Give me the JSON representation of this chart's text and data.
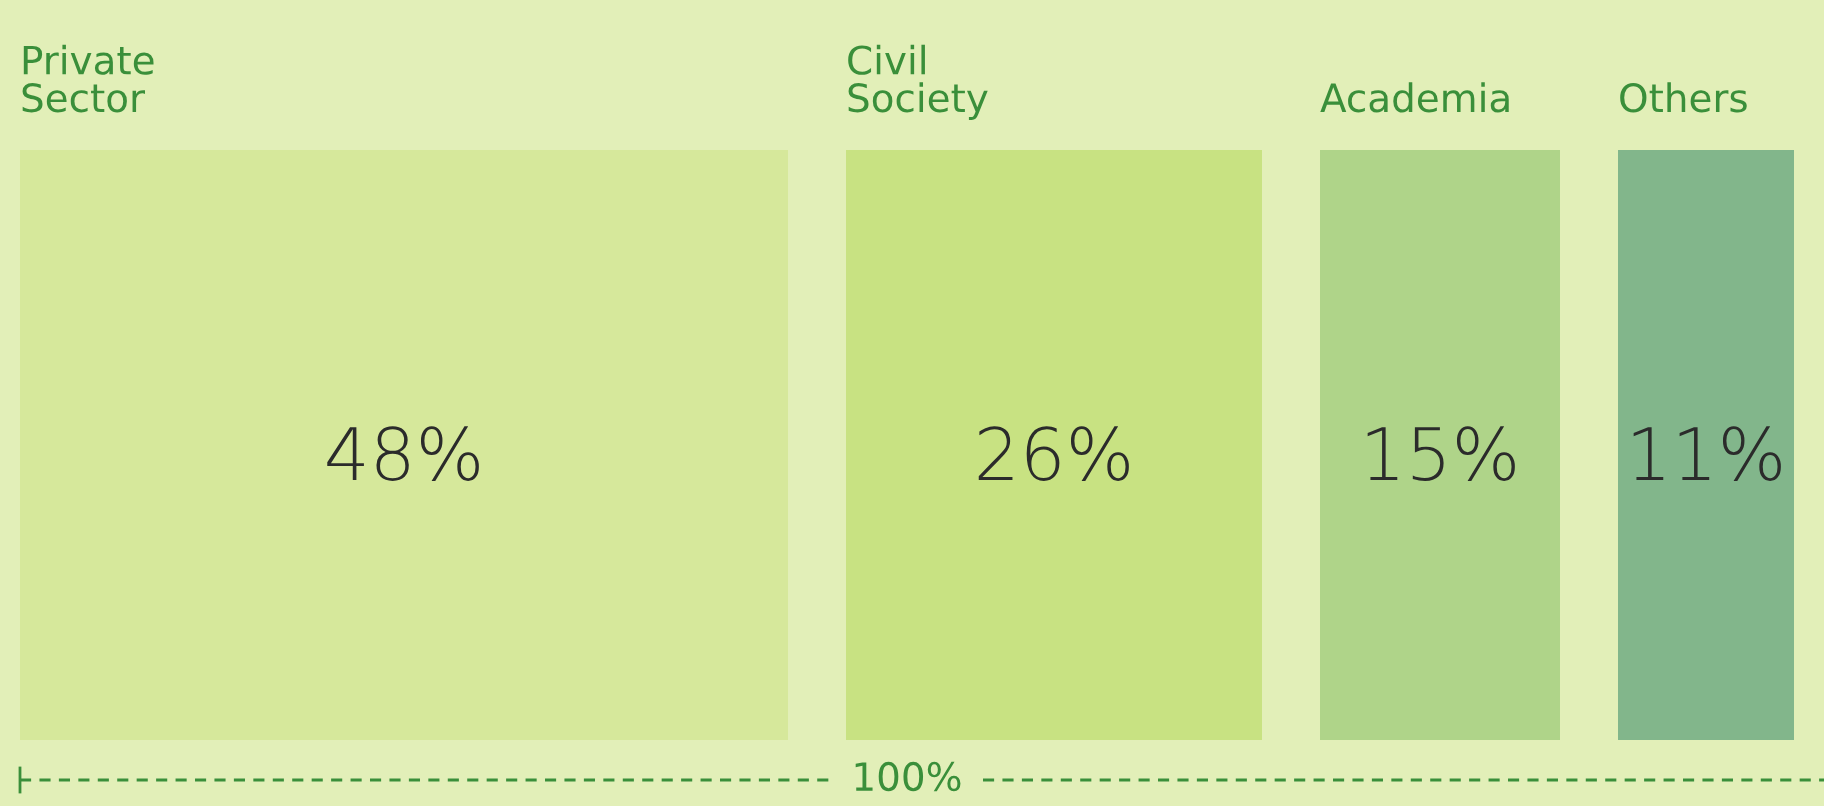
{
  "chart_data": {
    "type": "other",
    "categories": [
      "Private Sector",
      "Civil Society",
      "Academia",
      "Others"
    ],
    "values": [
      48,
      26,
      15,
      11
    ],
    "colors": [
      "#d6e89b",
      "#c8e282",
      "#afd489",
      "#82b68b"
    ],
    "value_labels": [
      "48%",
      "26%",
      "15%",
      "11%"
    ],
    "annotations": [
      "100%"
    ]
  }
}
